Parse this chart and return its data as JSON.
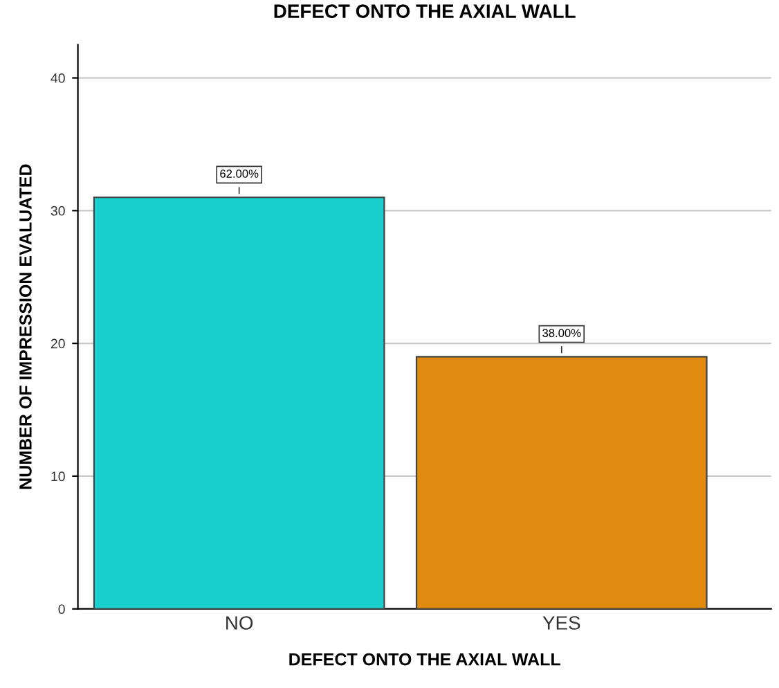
{
  "chart_data": {
    "type": "bar",
    "title": "DEFECT ONTO THE AXIAL WALL",
    "xlabel": "DEFECT ONTO THE AXIAL WALL",
    "ylabel": "NUMBER OF IMPRESSION EVALUATED",
    "categories": [
      "NO",
      "YES"
    ],
    "values": [
      31,
      19
    ],
    "colors": [
      "#1ccfcf",
      "#e08a0f"
    ],
    "annotations": [
      {
        "text": "62.00%",
        "x": "NO",
        "y": 31
      },
      {
        "text": "38.00%",
        "x": "YES",
        "y": 19
      }
    ],
    "ylim": [
      0,
      42.5
    ],
    "yticks": [
      0,
      10,
      20,
      30,
      40
    ],
    "grid": "y"
  }
}
